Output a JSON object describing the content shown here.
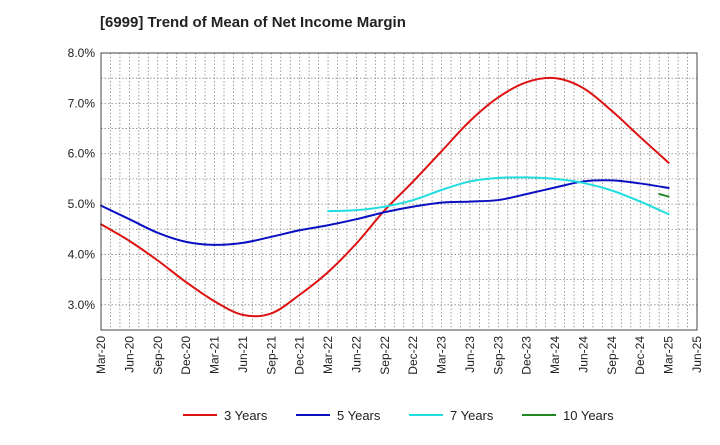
{
  "chart_data": {
    "type": "line",
    "title": "[6999]  Trend of Mean of Net Income Margin",
    "xlabel": "",
    "ylabel": "",
    "x_ticks": [
      "Mar-20",
      "Jun-20",
      "Sep-20",
      "Dec-20",
      "Mar-21",
      "Jun-21",
      "Sep-21",
      "Dec-21",
      "Mar-22",
      "Jun-22",
      "Sep-22",
      "Dec-22",
      "Mar-23",
      "Jun-23",
      "Sep-23",
      "Dec-23",
      "Mar-24",
      "Jun-24",
      "Sep-24",
      "Dec-24",
      "Mar-25",
      "Jun-25"
    ],
    "y_ticks": [
      "3.0%",
      "4.0%",
      "5.0%",
      "6.0%",
      "7.0%",
      "8.0%"
    ],
    "ylim": [
      2.5,
      8.0
    ],
    "grid": true,
    "legend_position": "bottom",
    "series": [
      {
        "name": "3 Years",
        "color": "#dd1111",
        "points": [
          [
            "Mar-20",
            4.6
          ],
          [
            "Jun-20",
            4.27
          ],
          [
            "Sep-20",
            3.88
          ],
          [
            "Dec-20",
            3.45
          ],
          [
            "Mar-21",
            3.07
          ],
          [
            "Jun-21",
            2.8
          ],
          [
            "Sep-21",
            2.83
          ],
          [
            "Dec-21",
            3.2
          ],
          [
            "Mar-22",
            3.65
          ],
          [
            "Jun-22",
            4.22
          ],
          [
            "Sep-22",
            4.88
          ],
          [
            "Dec-22",
            5.45
          ],
          [
            "Mar-23",
            6.05
          ],
          [
            "Jun-23",
            6.65
          ],
          [
            "Sep-23",
            7.12
          ],
          [
            "Dec-23",
            7.42
          ],
          [
            "Mar-24",
            7.5
          ],
          [
            "Jun-24",
            7.3
          ],
          [
            "Sep-24",
            6.85
          ],
          [
            "Dec-24",
            6.33
          ],
          [
            "Mar-25",
            5.82
          ]
        ]
      },
      {
        "name": "5 Years",
        "color": "#0a10c2",
        "points": [
          [
            "Mar-20",
            4.97
          ],
          [
            "Jun-20",
            4.7
          ],
          [
            "Sep-20",
            4.43
          ],
          [
            "Dec-20",
            4.25
          ],
          [
            "Mar-21",
            4.19
          ],
          [
            "Jun-21",
            4.23
          ],
          [
            "Sep-21",
            4.35
          ],
          [
            "Dec-21",
            4.48
          ],
          [
            "Mar-22",
            4.58
          ],
          [
            "Jun-22",
            4.7
          ],
          [
            "Sep-22",
            4.84
          ],
          [
            "Dec-22",
            4.95
          ],
          [
            "Mar-23",
            5.03
          ],
          [
            "Jun-23",
            5.05
          ],
          [
            "Sep-23",
            5.08
          ],
          [
            "Dec-23",
            5.2
          ],
          [
            "Mar-24",
            5.33
          ],
          [
            "Jun-24",
            5.45
          ],
          [
            "Sep-24",
            5.47
          ],
          [
            "Dec-24",
            5.41
          ],
          [
            "Mar-25",
            5.32
          ]
        ]
      },
      {
        "name": "7 Years",
        "color": "#22dddd",
        "points": [
          [
            "Mar-22",
            4.86
          ],
          [
            "Jun-22",
            4.88
          ],
          [
            "Sep-22",
            4.95
          ],
          [
            "Dec-22",
            5.08
          ],
          [
            "Mar-23",
            5.28
          ],
          [
            "Jun-23",
            5.45
          ],
          [
            "Sep-23",
            5.52
          ],
          [
            "Dec-23",
            5.53
          ],
          [
            "Mar-24",
            5.5
          ],
          [
            "Jun-24",
            5.42
          ],
          [
            "Sep-24",
            5.27
          ],
          [
            "Dec-24",
            5.05
          ],
          [
            "Mar-25",
            4.8
          ]
        ]
      },
      {
        "name": "10 Years",
        "color": "#228822",
        "points": [
          [
            "Feb-25",
            5.2
          ],
          [
            "Mar-25",
            5.15
          ]
        ]
      }
    ]
  }
}
